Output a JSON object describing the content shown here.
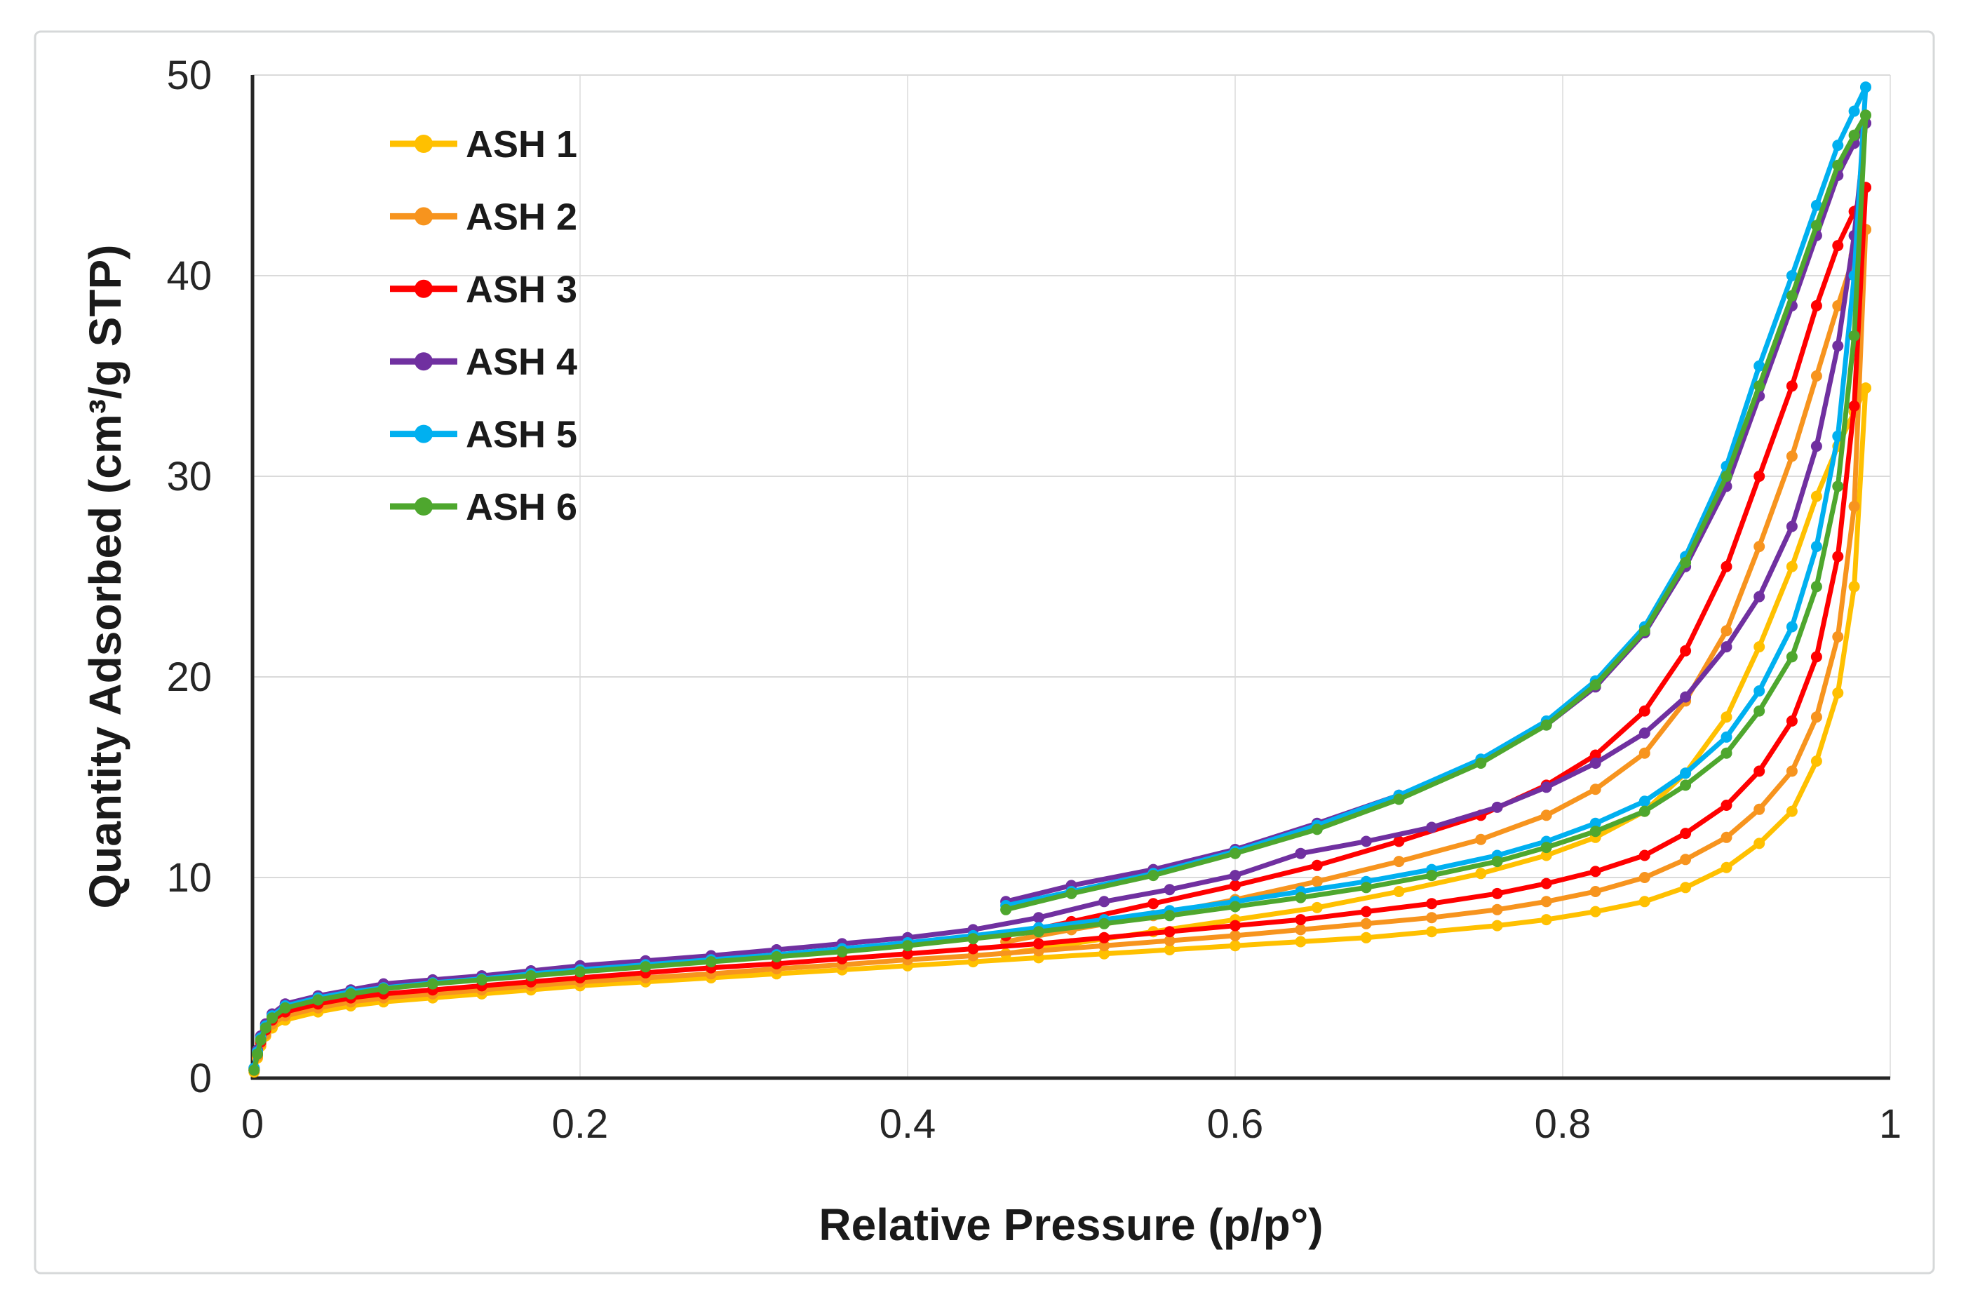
{
  "figure": {
    "background_color": "#ffffff",
    "border_color": "#d6d8d9",
    "axis_line_color": "#262626",
    "gridline_color": "#dadada",
    "vertical_gridline_color": "#e4e4e4",
    "text_color": "#1a1a1a"
  },
  "chart_data": {
    "type": "line",
    "title": "",
    "xlabel": "Relative Pressure (p/p°)",
    "ylabel": "Quantity Adsorbed (cm³/g STP)",
    "xlim": [
      0,
      1
    ],
    "ylim": [
      0,
      50
    ],
    "x_ticks": [
      0,
      0.2,
      0.4,
      0.6,
      0.8,
      1
    ],
    "x_tick_labels": [
      "0",
      "0.2",
      "0.4",
      "0.6",
      "0.8",
      "1"
    ],
    "y_ticks": [
      0,
      10,
      20,
      30,
      40,
      50
    ],
    "y_tick_labels": [
      "0",
      "10",
      "20",
      "30",
      "40",
      "50"
    ],
    "grid": "horizontal major lines, faint vertical lines at each 0.2",
    "legend_position": "upper-left inside plot",
    "marker": "circle",
    "x_adsorption": [
      0.001,
      0.003,
      0.005,
      0.008,
      0.012,
      0.02,
      0.04,
      0.06,
      0.08,
      0.11,
      0.14,
      0.17,
      0.2,
      0.24,
      0.28,
      0.32,
      0.36,
      0.4,
      0.44,
      0.48,
      0.52,
      0.56,
      0.6,
      0.64,
      0.68,
      0.72,
      0.76,
      0.79,
      0.82,
      0.85,
      0.875,
      0.9,
      0.92,
      0.94,
      0.955,
      0.968,
      0.978,
      0.985
    ],
    "x_desorption": [
      0.985,
      0.978,
      0.968,
      0.955,
      0.94,
      0.92,
      0.9,
      0.875,
      0.85,
      0.82,
      0.79,
      0.75,
      0.7,
      0.65,
      0.6,
      0.55,
      0.5,
      0.46
    ],
    "series": [
      {
        "name": "ASH 1",
        "color": "#FFC000",
        "y_adsorption": [
          0.3,
          1.0,
          1.6,
          2.1,
          2.5,
          2.9,
          3.3,
          3.6,
          3.8,
          4.0,
          4.2,
          4.4,
          4.6,
          4.8,
          5.0,
          5.2,
          5.4,
          5.6,
          5.8,
          6.0,
          6.2,
          6.4,
          6.6,
          6.8,
          7.0,
          7.3,
          7.6,
          7.9,
          8.3,
          8.8,
          9.5,
          10.5,
          11.7,
          13.3,
          15.8,
          19.2,
          24.5,
          34.4
        ],
        "y_desorption": [
          34.4,
          33.2,
          31.5,
          29.0,
          25.5,
          21.5,
          18.0,
          15.2,
          13.3,
          12.0,
          11.1,
          10.2,
          9.3,
          8.5,
          7.9,
          7.3,
          6.7,
          6.2
        ]
      },
      {
        "name": "ASH 2",
        "color": "#F7941E",
        "y_adsorption": [
          0.4,
          1.1,
          1.7,
          2.2,
          2.7,
          3.1,
          3.5,
          3.8,
          4.0,
          4.2,
          4.4,
          4.6,
          4.8,
          5.0,
          5.2,
          5.45,
          5.65,
          5.9,
          6.1,
          6.35,
          6.6,
          6.85,
          7.1,
          7.4,
          7.7,
          8.0,
          8.4,
          8.8,
          9.3,
          10.0,
          10.9,
          12.0,
          13.4,
          15.3,
          18.0,
          22.0,
          28.5,
          42.3
        ],
        "y_desorption": [
          42.3,
          41.0,
          38.5,
          35.0,
          31.0,
          26.5,
          22.3,
          18.8,
          16.2,
          14.4,
          13.1,
          11.9,
          10.8,
          9.8,
          8.9,
          8.1,
          7.4,
          6.8
        ]
      },
      {
        "name": "ASH 3",
        "color": "#FF0000",
        "y_adsorption": [
          0.4,
          1.2,
          1.8,
          2.4,
          2.9,
          3.3,
          3.7,
          4.0,
          4.2,
          4.4,
          4.6,
          4.8,
          5.0,
          5.25,
          5.5,
          5.7,
          5.95,
          6.2,
          6.45,
          6.7,
          7.0,
          7.3,
          7.6,
          7.9,
          8.3,
          8.7,
          9.2,
          9.7,
          10.3,
          11.1,
          12.2,
          13.6,
          15.3,
          17.8,
          21.0,
          26.0,
          33.5,
          44.4
        ],
        "y_desorption": [
          44.4,
          43.2,
          41.5,
          38.5,
          34.5,
          30.0,
          25.5,
          21.3,
          18.3,
          16.1,
          14.6,
          13.1,
          11.8,
          10.6,
          9.6,
          8.7,
          7.8,
          7.1
        ]
      },
      {
        "name": "ASH 4",
        "color": "#7030A0",
        "y_adsorption": [
          0.5,
          1.4,
          2.1,
          2.7,
          3.2,
          3.7,
          4.1,
          4.4,
          4.7,
          4.9,
          5.1,
          5.35,
          5.6,
          5.85,
          6.1,
          6.4,
          6.7,
          7.0,
          7.4,
          8.0,
          8.8,
          9.4,
          10.1,
          11.2,
          11.8,
          12.5,
          13.5,
          14.5,
          15.7,
          17.2,
          19.0,
          21.5,
          24.0,
          27.5,
          31.5,
          36.5,
          42.0,
          47.6
        ],
        "y_desorption": [
          47.6,
          46.6,
          45.0,
          42.0,
          38.5,
          34.0,
          29.5,
          25.5,
          22.2,
          19.5,
          17.6,
          15.8,
          14.1,
          12.7,
          11.4,
          10.4,
          9.6,
          8.8
        ]
      },
      {
        "name": "ASH 5",
        "color": "#00B0F0",
        "y_adsorption": [
          0.5,
          1.3,
          2.0,
          2.6,
          3.1,
          3.6,
          4.0,
          4.3,
          4.5,
          4.75,
          4.95,
          5.2,
          5.4,
          5.65,
          5.9,
          6.15,
          6.45,
          6.75,
          7.1,
          7.5,
          7.9,
          8.35,
          8.8,
          9.3,
          9.8,
          10.4,
          11.1,
          11.8,
          12.7,
          13.8,
          15.2,
          17.0,
          19.3,
          22.5,
          26.5,
          32.0,
          40.0,
          49.4
        ],
        "y_desorption": [
          49.4,
          48.2,
          46.5,
          43.5,
          40.0,
          35.5,
          30.5,
          26.0,
          22.5,
          19.8,
          17.8,
          15.9,
          14.1,
          12.6,
          11.3,
          10.2,
          9.3,
          8.6
        ]
      },
      {
        "name": "ASH 6",
        "color": "#4EA72E",
        "y_adsorption": [
          0.4,
          1.2,
          1.9,
          2.5,
          3.0,
          3.5,
          3.9,
          4.2,
          4.45,
          4.7,
          4.9,
          5.1,
          5.3,
          5.55,
          5.8,
          6.05,
          6.3,
          6.6,
          6.95,
          7.3,
          7.7,
          8.1,
          8.55,
          9.0,
          9.5,
          10.1,
          10.8,
          11.5,
          12.3,
          13.3,
          14.6,
          16.2,
          18.3,
          21.0,
          24.5,
          29.5,
          37.0,
          48.0
        ],
        "y_desorption": [
          48.0,
          47.0,
          45.5,
          42.5,
          39.0,
          34.5,
          30.0,
          25.7,
          22.3,
          19.6,
          17.6,
          15.7,
          13.9,
          12.4,
          11.2,
          10.1,
          9.2,
          8.4
        ]
      }
    ]
  },
  "legend": {
    "labels": [
      "ASH 1",
      "ASH 2",
      "ASH 3",
      "ASH 4",
      "ASH 5",
      "ASH 6"
    ]
  }
}
